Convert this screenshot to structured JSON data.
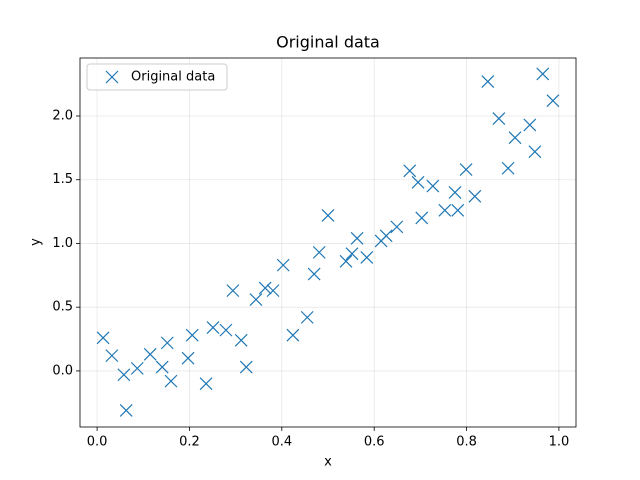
{
  "chart_data": {
    "type": "scatter",
    "title": "Original data",
    "x_label": "x",
    "y_label": "y",
    "series": [
      {
        "name": "Original data",
        "color": "#1f77b4",
        "x": [
          0.013,
          0.032,
          0.058,
          0.063,
          0.087,
          0.115,
          0.141,
          0.152,
          0.16,
          0.197,
          0.206,
          0.236,
          0.251,
          0.279,
          0.294,
          0.312,
          0.323,
          0.344,
          0.364,
          0.381,
          0.403,
          0.424,
          0.455,
          0.47,
          0.481,
          0.5,
          0.539,
          0.552,
          0.563,
          0.584,
          0.615,
          0.626,
          0.649,
          0.677,
          0.695,
          0.703,
          0.727,
          0.753,
          0.775,
          0.781,
          0.799,
          0.818,
          0.846,
          0.87,
          0.89,
          0.905,
          0.937,
          0.948,
          0.965,
          0.987
        ],
        "values": [
          0.26,
          0.12,
          -0.03,
          -0.31,
          0.02,
          0.13,
          0.03,
          0.22,
          -0.08,
          0.1,
          0.28,
          -0.1,
          0.34,
          0.32,
          0.63,
          0.24,
          0.03,
          0.56,
          0.65,
          0.63,
          0.83,
          0.28,
          0.42,
          0.76,
          0.93,
          1.22,
          0.86,
          0.92,
          1.04,
          0.89,
          1.02,
          1.06,
          1.13,
          1.57,
          1.48,
          1.2,
          1.45,
          1.26,
          1.4,
          1.26,
          1.58,
          1.37,
          2.27,
          1.98,
          1.59,
          1.83,
          1.93,
          1.72,
          2.33,
          2.12
        ]
      }
    ],
    "xlim": [
      -0.037,
      1.037
    ],
    "ylim": [
      -0.44,
      2.455
    ],
    "xticks": [
      {
        "value": 0,
        "label": "0.0"
      },
      0.2,
      0.4,
      0.6,
      0.8,
      {
        "value": 1,
        "label": "1.0"
      }
    ],
    "yticks": [
      {
        "value": 0,
        "label": "0.0"
      },
      0.5,
      {
        "value": 1,
        "label": "1.0"
      },
      1.5,
      {
        "value": 2,
        "label": "2.0"
      }
    ],
    "grid": true,
    "legend": "upper left"
  }
}
